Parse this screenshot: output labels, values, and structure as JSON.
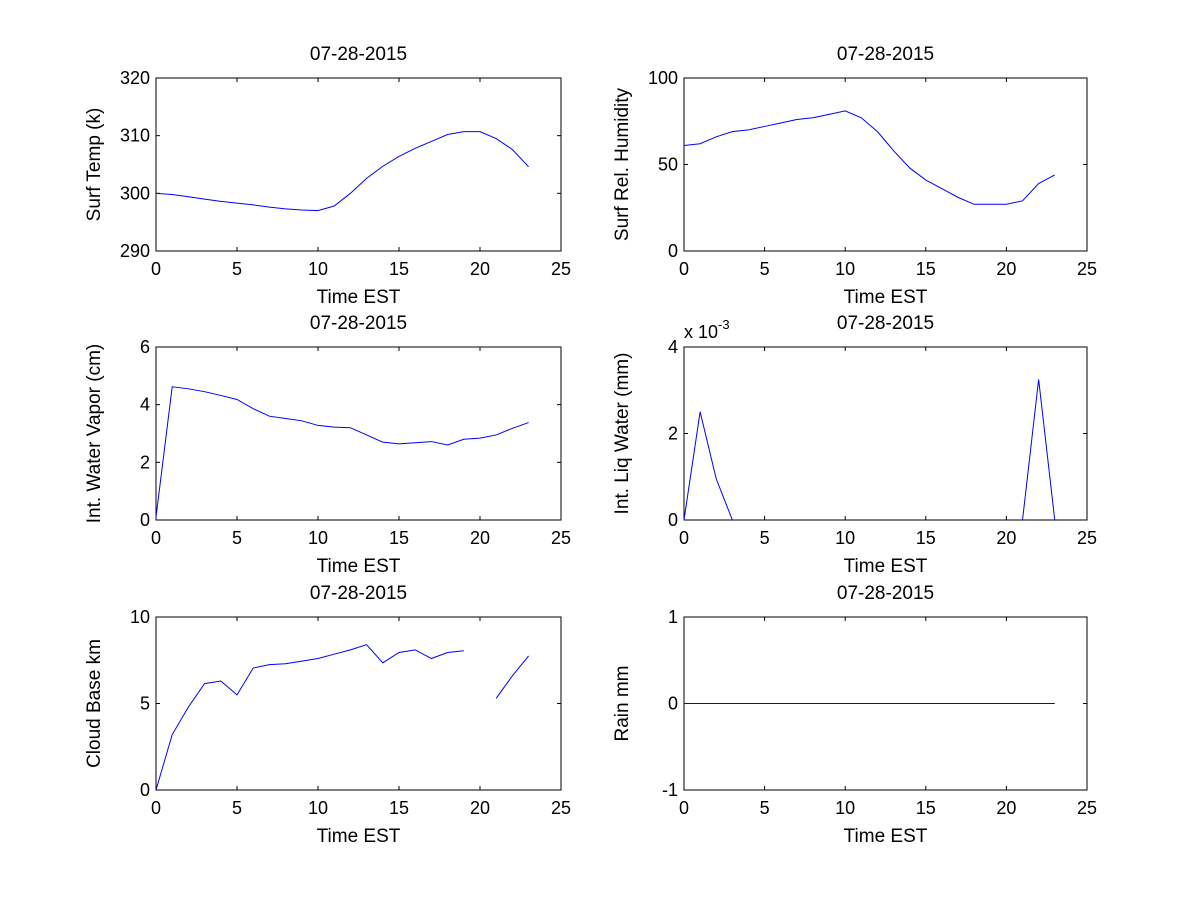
{
  "chart_data": [
    {
      "type": "line",
      "title": "07-28-2015",
      "xlabel": "Time EST",
      "ylabel": "Surf Temp (k)",
      "xlim": [
        0,
        25
      ],
      "ylim": [
        290,
        320
      ],
      "xticks": [
        0,
        5,
        10,
        15,
        20,
        25
      ],
      "yticks": [
        290,
        300,
        310,
        320
      ],
      "xtick_labels": [
        "0",
        "5",
        "10",
        "15",
        "20",
        "25"
      ],
      "ytick_labels": [
        "290",
        "300",
        "310",
        "320"
      ],
      "grid": false,
      "line_color": "#0000ff",
      "series": [
        {
          "name": "Surf Temp",
          "x": [
            0,
            1,
            2,
            3,
            4,
            5,
            6,
            7,
            8,
            9,
            10,
            11,
            12,
            13,
            14,
            15,
            16,
            17,
            18,
            19,
            20,
            21,
            22,
            23
          ],
          "y": [
            300.0,
            299.8,
            299.4,
            299.0,
            298.6,
            298.3,
            298.0,
            297.6,
            297.3,
            297.1,
            297.0,
            297.8,
            300.0,
            302.6,
            304.7,
            306.4,
            307.8,
            309.0,
            310.2,
            310.7,
            310.7,
            309.5,
            307.6,
            304.6
          ]
        }
      ]
    },
    {
      "type": "line",
      "title": "07-28-2015",
      "xlabel": "Time EST",
      "ylabel": "Surf Rel. Humidity",
      "xlim": [
        0,
        25
      ],
      "ylim": [
        0,
        100
      ],
      "xticks": [
        0,
        5,
        10,
        15,
        20,
        25
      ],
      "yticks": [
        0,
        50,
        100
      ],
      "xtick_labels": [
        "0",
        "5",
        "10",
        "15",
        "20",
        "25"
      ],
      "ytick_labels": [
        "0",
        "50",
        "100"
      ],
      "grid": false,
      "line_color": "#0000ff",
      "series": [
        {
          "name": "Surf Rel. Humidity",
          "x": [
            0,
            1,
            2,
            3,
            4,
            5,
            6,
            7,
            8,
            9,
            10,
            11,
            12,
            13,
            14,
            15,
            16,
            17,
            18,
            19,
            20,
            21,
            22,
            23
          ],
          "y": [
            61,
            62,
            66,
            69,
            70,
            72,
            74,
            76,
            77,
            79,
            81,
            77,
            69,
            58,
            48,
            41,
            36,
            31,
            27,
            27,
            27,
            29,
            39,
            44
          ]
        }
      ]
    },
    {
      "type": "line",
      "title": "07-28-2015",
      "xlabel": "Time EST",
      "ylabel": "Int. Water Vapor (cm)",
      "xlim": [
        0,
        25
      ],
      "ylim": [
        0,
        6
      ],
      "xticks": [
        0,
        5,
        10,
        15,
        20,
        25
      ],
      "yticks": [
        0,
        2,
        4,
        6
      ],
      "xtick_labels": [
        "0",
        "5",
        "10",
        "15",
        "20",
        "25"
      ],
      "ytick_labels": [
        "0",
        "2",
        "4",
        "6"
      ],
      "grid": false,
      "line_color": "#0000ff",
      "series": [
        {
          "name": "Int. Water Vapor",
          "x": [
            0,
            1,
            2,
            3,
            4,
            5,
            6,
            7,
            8,
            9,
            10,
            11,
            12,
            13,
            14,
            15,
            16,
            17,
            18,
            19,
            20,
            21,
            22,
            23
          ],
          "y": [
            0.1,
            4.62,
            4.55,
            4.45,
            4.32,
            4.18,
            3.86,
            3.6,
            3.52,
            3.44,
            3.28,
            3.22,
            3.2,
            2.95,
            2.7,
            2.64,
            2.68,
            2.72,
            2.6,
            2.8,
            2.84,
            2.95,
            3.18,
            3.38
          ]
        }
      ]
    },
    {
      "type": "line",
      "title": "07-28-2015",
      "xlabel": "Time EST",
      "ylabel": "Int. Liq Water (mm)",
      "exponent_label_base": "x 10",
      "exponent_label_power": "-3",
      "xlim": [
        0,
        25
      ],
      "ylim": [
        0,
        4
      ],
      "xticks": [
        0,
        5,
        10,
        15,
        20,
        25
      ],
      "yticks": [
        0,
        2,
        4
      ],
      "xtick_labels": [
        "0",
        "5",
        "10",
        "15",
        "20",
        "25"
      ],
      "ytick_labels": [
        "0",
        "2",
        "4"
      ],
      "grid": false,
      "line_color": "#0000ff",
      "series": [
        {
          "name": "Int. Liq Water",
          "x": [
            0,
            1,
            2,
            3,
            21,
            22,
            23
          ],
          "y": [
            0,
            2.5,
            0.95,
            0,
            0,
            3.25,
            0
          ],
          "segments": [
            [
              0,
              4
            ],
            [
              4,
              7
            ]
          ]
        }
      ]
    },
    {
      "type": "line",
      "title": "07-28-2015",
      "xlabel": "Time EST",
      "ylabel": "Cloud Base km",
      "xlim": [
        0,
        25
      ],
      "ylim": [
        0,
        10
      ],
      "xticks": [
        0,
        5,
        10,
        15,
        20,
        25
      ],
      "yticks": [
        0,
        5,
        10
      ],
      "xtick_labels": [
        "0",
        "5",
        "10",
        "15",
        "20",
        "25"
      ],
      "ytick_labels": [
        "0",
        "5",
        "10"
      ],
      "grid": false,
      "line_color": "#0000ff",
      "series": [
        {
          "name": "Cloud Base",
          "x": [
            0,
            1,
            2,
            3,
            4,
            5,
            6,
            7,
            8,
            9,
            10,
            11,
            12,
            13,
            14,
            15,
            16,
            17,
            18,
            19,
            21,
            22,
            23
          ],
          "y": [
            0,
            3.2,
            4.8,
            6.15,
            6.3,
            5.5,
            7.05,
            7.25,
            7.3,
            7.45,
            7.6,
            7.85,
            8.1,
            8.4,
            7.35,
            7.95,
            8.1,
            7.6,
            7.95,
            8.05,
            5.3,
            6.6,
            7.75
          ],
          "segments": [
            [
              0,
              20
            ],
            [
              20,
              23
            ]
          ]
        }
      ]
    },
    {
      "type": "line",
      "title": "07-28-2015",
      "xlabel": "Time EST",
      "ylabel": "Rain mm",
      "xlim": [
        0,
        25
      ],
      "ylim": [
        -1,
        1
      ],
      "xticks": [
        0,
        5,
        10,
        15,
        20,
        25
      ],
      "yticks": [
        -1,
        0,
        1
      ],
      "xtick_labels": [
        "0",
        "5",
        "10",
        "15",
        "20",
        "25"
      ],
      "ytick_labels": [
        "-1",
        "0",
        "1"
      ],
      "grid": false,
      "line_color": "#0000ff",
      "series": [
        {
          "name": "Rain",
          "x": [
            0,
            1,
            2,
            3,
            4,
            5,
            6,
            7,
            8,
            9,
            10,
            11,
            12,
            13,
            14,
            15,
            16,
            17,
            18,
            19,
            20,
            21,
            22,
            23
          ],
          "y": [
            0,
            0,
            0,
            0,
            0,
            0,
            0,
            0,
            0,
            0,
            0,
            0,
            0,
            0,
            0,
            0,
            0,
            0,
            0,
            0,
            0,
            0,
            0,
            0
          ]
        }
      ]
    }
  ]
}
